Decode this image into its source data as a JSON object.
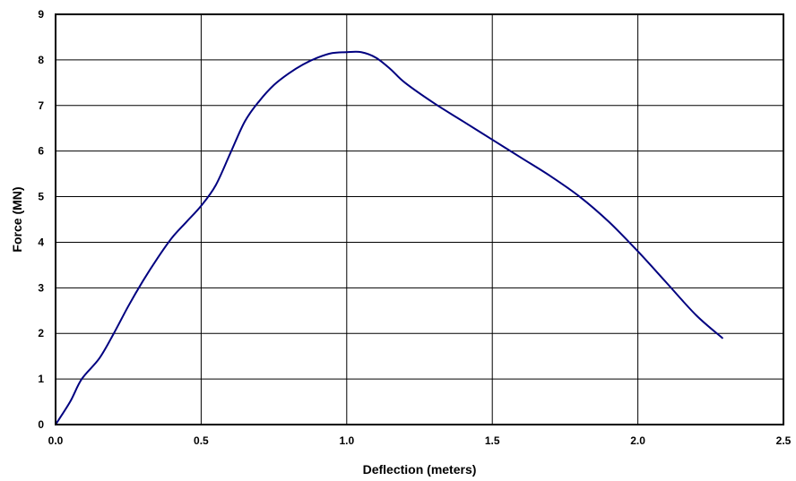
{
  "chart_data": {
    "type": "line",
    "title": "",
    "xlabel": "Deflection (meters)",
    "ylabel": "Force (MN)",
    "xlim": [
      0.0,
      2.5
    ],
    "ylim": [
      0,
      9
    ],
    "x_ticks": [
      "0.0",
      "0.5",
      "1.0",
      "1.5",
      "2.0",
      "2.5"
    ],
    "x_tick_values": [
      0.0,
      0.5,
      1.0,
      1.5,
      2.0,
      2.5
    ],
    "y_ticks": [
      "0",
      "1",
      "2",
      "3",
      "4",
      "5",
      "6",
      "7",
      "8",
      "9"
    ],
    "y_tick_values": [
      0,
      1,
      2,
      3,
      4,
      5,
      6,
      7,
      8,
      9
    ],
    "grid": true,
    "legend": "none",
    "series": [
      {
        "color": "#000080",
        "x": [
          0.0,
          0.05,
          0.09,
          0.15,
          0.2,
          0.25,
          0.3,
          0.35,
          0.4,
          0.45,
          0.5,
          0.55,
          0.6,
          0.65,
          0.7,
          0.75,
          0.8,
          0.85,
          0.9,
          0.95,
          1.0,
          1.05,
          1.1,
          1.15,
          1.2,
          1.3,
          1.4,
          1.5,
          1.6,
          1.7,
          1.8,
          1.9,
          2.0,
          2.1,
          2.2,
          2.29
        ],
        "y": [
          0.0,
          0.5,
          1.0,
          1.45,
          2.0,
          2.6,
          3.15,
          3.65,
          4.1,
          4.45,
          4.8,
          5.25,
          5.95,
          6.65,
          7.1,
          7.45,
          7.7,
          7.9,
          8.05,
          8.15,
          8.17,
          8.17,
          8.05,
          7.8,
          7.5,
          7.05,
          6.65,
          6.25,
          5.85,
          5.45,
          5.0,
          4.45,
          3.8,
          3.1,
          2.4,
          1.9
        ]
      }
    ]
  }
}
